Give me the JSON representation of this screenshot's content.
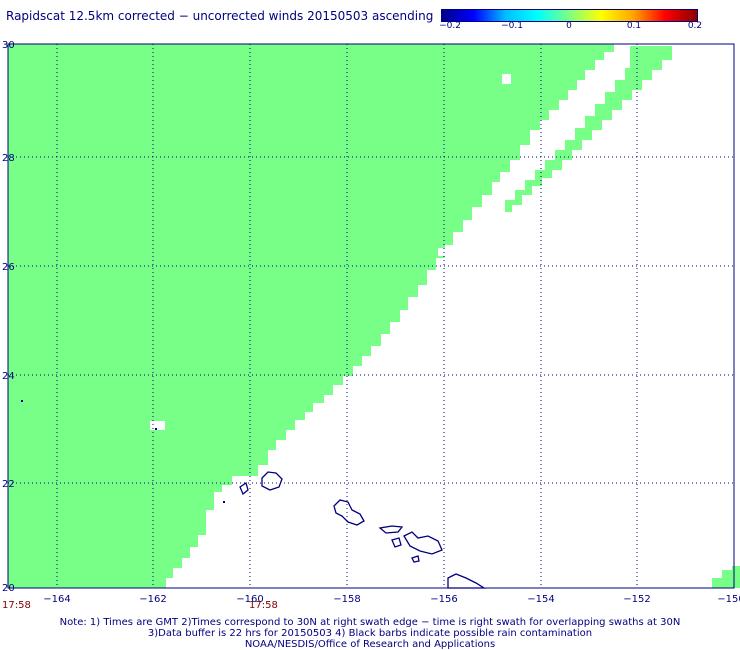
{
  "title": "Rapidscat 12.5km corrected − uncorrected winds 20150503 ascending",
  "colorbar": {
    "ticks": [
      "−0.2",
      "−0.1",
      "0",
      "0.1",
      "0.2"
    ],
    "stops": [
      "#00008b",
      "#0000ff",
      "#00bfff",
      "#00ffff",
      "#7fff7f",
      "#ffff00",
      "#ffa500",
      "#ff0000",
      "#8b0000"
    ]
  },
  "map": {
    "lon_labels": [
      "−164",
      "−162",
      "−160",
      "−158",
      "−156",
      "−154",
      "−152",
      "−150"
    ],
    "lat_labels": [
      "30",
      "28",
      "26",
      "24",
      "22",
      "20"
    ],
    "lon_range": [
      -165,
      -150
    ],
    "lat_range": [
      20,
      30
    ],
    "swath_color": "#77ff88",
    "coast_color": "#000080",
    "grid": "dotted"
  },
  "times": {
    "left": "17:58",
    "center": "17:58"
  },
  "notes": {
    "line1": "Note: 1) Times are GMT 2)Times correspond to 30N at right swath edge − time is right swath for overlapping swaths at 30N",
    "line2": "3)Data buffer is 22 hrs for 20150503 4) Black barbs indicate possible rain contamination",
    "line3": "NOAA/NESDIS/Office of Research and Applications"
  }
}
